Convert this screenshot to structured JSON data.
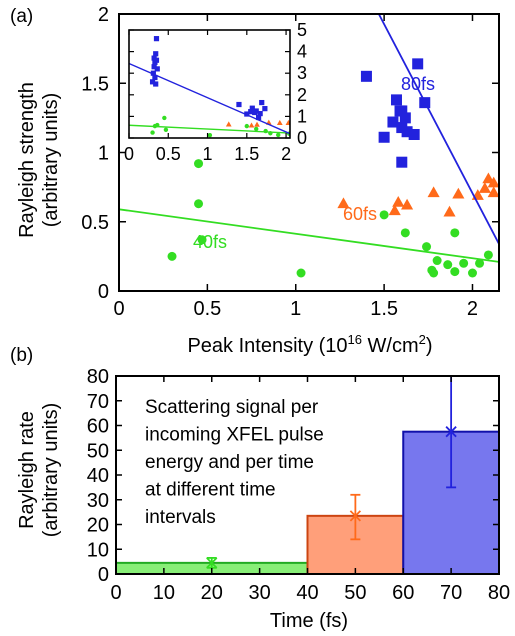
{
  "chart_data": [
    {
      "panel_label": "(a)",
      "type": "scatter",
      "xlabel_main": "Peak Intensity (10",
      "xlabel_sup": "16",
      "xlabel_tail": " W/cm",
      "xlabel_sup2": "2",
      "xlabel_end": ")",
      "ylabel_line1": "Rayleigh strength",
      "ylabel_line2": "(arbitrary units)",
      "xlim": [
        0,
        2.15
      ],
      "ylim": [
        0,
        2
      ],
      "x_ticks": [
        "0",
        "0.5",
        "1",
        "1.5",
        "2"
      ],
      "y_ticks": [
        "0",
        "0.5",
        "1",
        "1.5",
        "2"
      ],
      "series": [
        {
          "name": "40fs",
          "color": "#33dd22",
          "marker": "circle",
          "points": [
            [
              0.3,
              0.25
            ],
            [
              0.45,
              0.92
            ],
            [
              0.45,
              0.63
            ],
            [
              0.47,
              0.37
            ],
            [
              1.03,
              0.13
            ],
            [
              1.5,
              0.55
            ],
            [
              1.62,
              0.42
            ],
            [
              1.74,
              0.32
            ],
            [
              1.77,
              0.15
            ],
            [
              1.78,
              0.13
            ],
            [
              1.8,
              0.22
            ],
            [
              1.86,
              0.19
            ],
            [
              1.9,
              0.14
            ],
            [
              1.9,
              0.42
            ],
            [
              1.95,
              0.2
            ],
            [
              2.0,
              0.13
            ],
            [
              2.04,
              0.2
            ],
            [
              2.09,
              0.26
            ]
          ],
          "fit": [
            [
              0,
              0.59
            ],
            [
              2.15,
              0.21
            ]
          ]
        },
        {
          "name": "60fs",
          "color": "#ff6a1a",
          "marker": "triangle",
          "points": [
            [
              1.27,
              0.63
            ],
            [
              1.56,
              0.58
            ],
            [
              1.58,
              0.64
            ],
            [
              1.63,
              0.62
            ],
            [
              1.78,
              0.71
            ],
            [
              1.87,
              0.57
            ],
            [
              1.92,
              0.7
            ],
            [
              2.03,
              0.69
            ],
            [
              2.07,
              0.74
            ],
            [
              2.09,
              0.81
            ],
            [
              2.12,
              0.78
            ],
            [
              2.12,
              0.71
            ]
          ],
          "fit": [
            [
              1.47,
              2.0
            ],
            [
              2.15,
              0.34
            ]
          ]
        },
        {
          "name": "80fs",
          "color": "#2222dd",
          "marker": "square",
          "points": [
            [
              1.4,
              1.55
            ],
            [
              1.5,
              1.11
            ],
            [
              1.55,
              1.22
            ],
            [
              1.57,
              1.38
            ],
            [
              1.59,
              1.3
            ],
            [
              1.6,
              1.18
            ],
            [
              1.6,
              0.93
            ],
            [
              1.62,
              1.25
            ],
            [
              1.63,
              1.15
            ],
            [
              1.67,
              1.13
            ],
            [
              1.69,
              1.64
            ],
            [
              1.73,
              1.36
            ],
            [
              1.6,
              1.3
            ]
          ],
          "fit": [
            [
              1.47,
              2.0
            ],
            [
              2.15,
              0.34
            ]
          ]
        }
      ],
      "annotations": [
        {
          "text": "80fs",
          "color": "#2222dd"
        },
        {
          "text": "60fs",
          "color": "#ff6a1a"
        },
        {
          "text": "40fs",
          "color": "#33dd22"
        }
      ],
      "inset": {
        "xlim": [
          0,
          2.05
        ],
        "ylim": [
          0,
          5
        ],
        "x_ticks": [
          "0",
          "0.5",
          "1",
          "1.5",
          "2"
        ],
        "y_ticks": [
          "0",
          "1",
          "2",
          "3",
          "4",
          "5"
        ],
        "series": [
          {
            "name": "40fs",
            "color": "#33dd22",
            "marker": "circle",
            "points": [
              [
                0.3,
                0.25
              ],
              [
                0.33,
                0.55
              ],
              [
                0.36,
                0.6
              ],
              [
                0.45,
                0.93
              ],
              [
                0.47,
                0.38
              ],
              [
                1.03,
                0.13
              ],
              [
                1.5,
                0.55
              ],
              [
                1.62,
                0.42
              ],
              [
                1.74,
                0.32
              ],
              [
                1.8,
                0.22
              ],
              [
                1.9,
                0.14
              ],
              [
                2.04,
                0.2
              ]
            ],
            "fit": [
              [
                0,
                0.59
              ],
              [
                2.05,
                0.23
              ]
            ]
          },
          {
            "name": "60fs",
            "color": "#ff6a1a",
            "marker": "triangle",
            "points": [
              [
                1.27,
                0.63
              ],
              [
                1.56,
                0.58
              ],
              [
                1.63,
                0.62
              ],
              [
                1.78,
                0.71
              ],
              [
                1.92,
                0.7
              ],
              [
                2.03,
                0.7
              ]
            ]
          },
          {
            "name": "80fs",
            "color": "#2222dd",
            "marker": "square",
            "points": [
              [
                0.3,
                2.6
              ],
              [
                0.31,
                3.0
              ],
              [
                0.32,
                3.3
              ],
              [
                0.32,
                3.7
              ],
              [
                0.33,
                2.8
              ],
              [
                0.33,
                3.5
              ],
              [
                0.34,
                3.9
              ],
              [
                0.34,
                2.5
              ],
              [
                0.35,
                3.6
              ],
              [
                0.36,
                3.2
              ],
              [
                0.35,
                4.6
              ],
              [
                1.4,
                1.55
              ],
              [
                1.5,
                1.11
              ],
              [
                1.55,
                1.22
              ],
              [
                1.57,
                1.38
              ],
              [
                1.6,
                1.18
              ],
              [
                1.62,
                1.25
              ],
              [
                1.67,
                1.13
              ],
              [
                1.69,
                1.64
              ],
              [
                1.73,
                1.36
              ],
              [
                1.65,
                0.95
              ]
            ],
            "fit": [
              [
                0,
                3.45
              ],
              [
                2.05,
                0.2
              ]
            ]
          }
        ]
      }
    },
    {
      "panel_label": "(b)",
      "type": "bar",
      "xlabel": "Time (fs)",
      "ylabel_line1": "Rayleigh rate",
      "ylabel_line2": "(arbitrary units)",
      "xlim": [
        0,
        80
      ],
      "ylim": [
        0,
        80
      ],
      "x_ticks": [
        "0",
        "10",
        "20",
        "30",
        "40",
        "50",
        "60",
        "70",
        "80"
      ],
      "y_ticks": [
        "0",
        "10",
        "20",
        "30",
        "40",
        "50",
        "60",
        "70",
        "80"
      ],
      "bars": [
        {
          "start": 0,
          "end": 40,
          "value": 4.5,
          "center": 20,
          "err_low": 2.5,
          "err_high": 6.5,
          "fill": "#88ee77",
          "stroke": "#22aa22",
          "errcolor": "#33dd22"
        },
        {
          "start": 40,
          "end": 60,
          "value": 23.5,
          "center": 50,
          "err_low": 14,
          "err_high": 32,
          "fill": "#ff9f7a",
          "stroke": "#cc4411",
          "errcolor": "#ff6a1a"
        },
        {
          "start": 60,
          "end": 80,
          "value": 57.5,
          "center": 70,
          "err_low": 35,
          "err_high": 80,
          "fill": "#7777ee",
          "stroke": "#1111aa",
          "errcolor": "#2222dd"
        }
      ],
      "annotation_lines": [
        "Scattering signal per",
        "incoming XFEL pulse",
        "energy and per time",
        "at different time",
        "intervals"
      ]
    }
  ]
}
